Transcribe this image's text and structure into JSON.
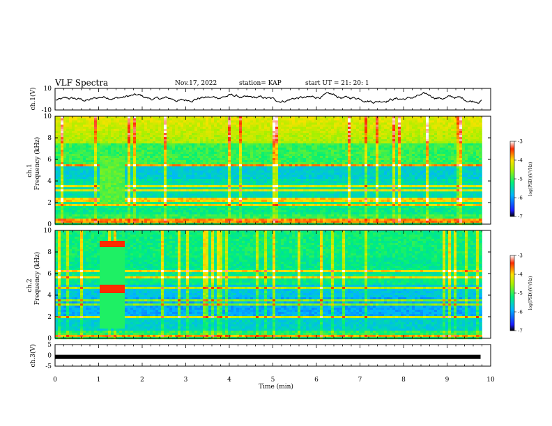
{
  "header": {
    "title": "VLF Spectra",
    "date": "Nov.17, 2022",
    "station": "station= KAP",
    "start": "start  UT  =   21: 20: 1"
  },
  "chart_data": [
    {
      "type": "line",
      "name": "ch1-voltage",
      "ylabel": "ch.1(V)",
      "ylim": [
        -10,
        10
      ],
      "yticks": [
        "10",
        "-10"
      ],
      "xlim": [
        0,
        10
      ],
      "note_series": "continuous noisy trace fluctuating around ~ -1 to 3 V"
    },
    {
      "type": "heatmap",
      "name": "ch1-spectrogram",
      "ylabel": "ch.1\nFrequency  (kHz)",
      "ylim": [
        0,
        10
      ],
      "yticks": [
        "0",
        "2",
        "4",
        "6",
        "8",
        "10"
      ],
      "xlim": [
        0,
        10
      ],
      "colorbar": {
        "label": "log(PSD)(V²/Hz)",
        "range": [
          -7,
          -3
        ],
        "ticks": [
          "-3",
          "-4",
          "-5",
          "-6",
          "-7"
        ]
      },
      "bands_khz": [
        0.3,
        0.6,
        1.8,
        2.2,
        2.5,
        3.3,
        3.7,
        3.9,
        5.5
      ],
      "interference_block": {
        "x": [
          1.0,
          1.55
        ],
        "ylim": [
          2.0,
          6.5
        ]
      },
      "data_end_min": 9.8
    },
    {
      "type": "heatmap",
      "name": "ch2-spectrogram",
      "ylabel": "ch.2\nFrequency  (kHz)",
      "ylim": [
        0,
        10
      ],
      "yticks": [
        "0",
        "2",
        "4",
        "6",
        "8",
        "10"
      ],
      "xlim": [
        0,
        10
      ],
      "colorbar": {
        "label": "log(PSD)(V²/Hz)",
        "range": [
          -7,
          -3
        ],
        "ticks": [
          "-3",
          "-4",
          "-5",
          "-6",
          "-7"
        ]
      },
      "bands_khz": [
        0.4,
        2.0,
        3.3,
        3.6,
        4.8,
        5.7,
        6.3
      ],
      "interference_block": {
        "x": [
          1.0,
          1.55
        ],
        "ylim": [
          1.0,
          9.2
        ]
      },
      "data_end_min": 9.8
    },
    {
      "type": "line",
      "name": "ch3-voltage",
      "ylabel": "ch.3(V)",
      "ylim": [
        -5,
        5
      ],
      "yticks": [
        "5",
        "0",
        "-5"
      ],
      "xlim": [
        0,
        10
      ],
      "xlabel": "Time  (min)",
      "xticks": [
        "0",
        "1",
        "2",
        "3",
        "4",
        "5",
        "6",
        "7",
        "8",
        "9",
        "10"
      ],
      "level_v": -0.7
    }
  ],
  "colors": {
    "bg": "#ffffff",
    "axis": "#000000"
  }
}
